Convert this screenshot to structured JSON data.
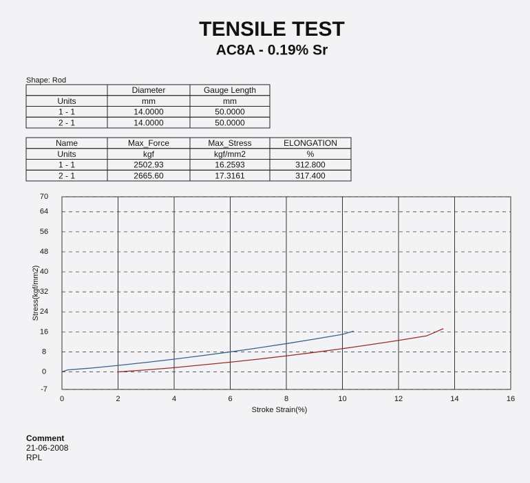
{
  "header": {
    "title": "TENSILE TEST",
    "subtitle": "AC8A - 0.19% Sr"
  },
  "shape": "Shape: Rod",
  "tables": [
    {
      "header": [
        "Diameter",
        "Gauge Length"
      ],
      "rows": [
        [
          "Units",
          "mm",
          "mm"
        ],
        [
          "1 - 1",
          "14.0000",
          "50.0000"
        ],
        [
          "2 - 1",
          "14.0000",
          "50.0000"
        ]
      ]
    },
    {
      "header": [
        "Name",
        "Max_Force",
        "Max_Stress",
        "ELONGATION"
      ],
      "rows": [
        [
          "Units",
          "kgf",
          "kgf/mm2",
          "%"
        ],
        [
          "1 - 1",
          "2502.93",
          "16.2593",
          "312.800"
        ],
        [
          "2 - 1",
          "2665.60",
          "17.3161",
          "317.400"
        ]
      ]
    }
  ],
  "comment": {
    "label": "Comment",
    "date": "21-06-2008",
    "author": "RPL"
  },
  "chart_data": {
    "type": "line",
    "x_label": "Stroke Strain(%)",
    "y_label": "Stress(kgf/mm2)",
    "xlim": [
      0,
      16
    ],
    "ylim": [
      -7,
      70
    ],
    "xticks": [
      0,
      2,
      4,
      6,
      8,
      10,
      12,
      14,
      16
    ],
    "yticks": [
      -7,
      0,
      8,
      16,
      24,
      32,
      40,
      48,
      56,
      64,
      70
    ],
    "grid": true,
    "series": [
      {
        "color": "#3a5f8a",
        "x": [
          0,
          0.2,
          1,
          2,
          3,
          4,
          5,
          6,
          7,
          8,
          9,
          10,
          10.4
        ],
        "values": [
          0,
          0.8,
          1.5,
          2.6,
          3.8,
          5.1,
          6.5,
          8,
          9.6,
          11.3,
          13.1,
          15,
          16.3
        ]
      },
      {
        "color": "#9a2a2a",
        "x": [
          2,
          3,
          4,
          5,
          6,
          7,
          8,
          9,
          10,
          11,
          12,
          13,
          13.6
        ],
        "values": [
          0,
          0.8,
          1.7,
          2.8,
          3.9,
          5.1,
          6.4,
          7.8,
          9.3,
          10.9,
          12.6,
          14.4,
          17.3
        ]
      }
    ]
  }
}
